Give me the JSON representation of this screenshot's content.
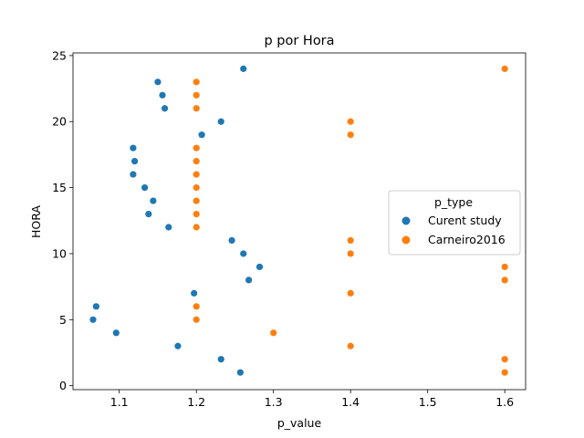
{
  "chart_data": {
    "type": "scatter",
    "title": "p por Hora",
    "xlabel": "p_value",
    "ylabel": "HORA",
    "xlim": [
      1.04,
      1.627
    ],
    "ylim": [
      -0.3,
      25.2
    ],
    "xticks": [
      1.1,
      1.2,
      1.3,
      1.4,
      1.5,
      1.6
    ],
    "xtick_labels": [
      "1.1",
      "1.2",
      "1.3",
      "1.4",
      "1.5",
      "1.6"
    ],
    "yticks": [
      0,
      5,
      10,
      15,
      20,
      25
    ],
    "ytick_labels": [
      "0",
      "5",
      "10",
      "15",
      "20",
      "25"
    ],
    "grid": false,
    "legend": {
      "title": "p_type",
      "placement": "right"
    },
    "series": [
      {
        "name": "Curent study",
        "color": "#1f77b4",
        "points": [
          [
            1.257,
            1
          ],
          [
            1.232,
            2
          ],
          [
            1.176,
            3
          ],
          [
            1.096,
            4
          ],
          [
            1.066,
            5
          ],
          [
            1.07,
            6
          ],
          [
            1.197,
            7
          ],
          [
            1.268,
            8
          ],
          [
            1.282,
            9
          ],
          [
            1.261,
            10
          ],
          [
            1.246,
            11
          ],
          [
            1.164,
            12
          ],
          [
            1.138,
            13
          ],
          [
            1.144,
            14
          ],
          [
            1.133,
            15
          ],
          [
            1.118,
            16
          ],
          [
            1.12,
            17
          ],
          [
            1.118,
            18
          ],
          [
            1.207,
            19
          ],
          [
            1.232,
            20
          ],
          [
            1.159,
            21
          ],
          [
            1.156,
            22
          ],
          [
            1.15,
            23
          ],
          [
            1.261,
            24
          ]
        ]
      },
      {
        "name": "Carneiro2016",
        "color": "#ff7f0e",
        "points": [
          [
            1.6,
            1
          ],
          [
            1.6,
            2
          ],
          [
            1.4,
            3
          ],
          [
            1.3,
            4
          ],
          [
            1.2,
            5
          ],
          [
            1.2,
            6
          ],
          [
            1.4,
            7
          ],
          [
            1.6,
            8
          ],
          [
            1.6,
            9
          ],
          [
            1.4,
            10
          ],
          [
            1.4,
            11
          ],
          [
            1.2,
            12
          ],
          [
            1.2,
            13
          ],
          [
            1.2,
            14
          ],
          [
            1.2,
            15
          ],
          [
            1.2,
            16
          ],
          [
            1.2,
            17
          ],
          [
            1.2,
            18
          ],
          [
            1.4,
            19
          ],
          [
            1.4,
            20
          ],
          [
            1.2,
            21
          ],
          [
            1.2,
            22
          ],
          [
            1.2,
            23
          ],
          [
            1.6,
            24
          ]
        ]
      }
    ]
  }
}
